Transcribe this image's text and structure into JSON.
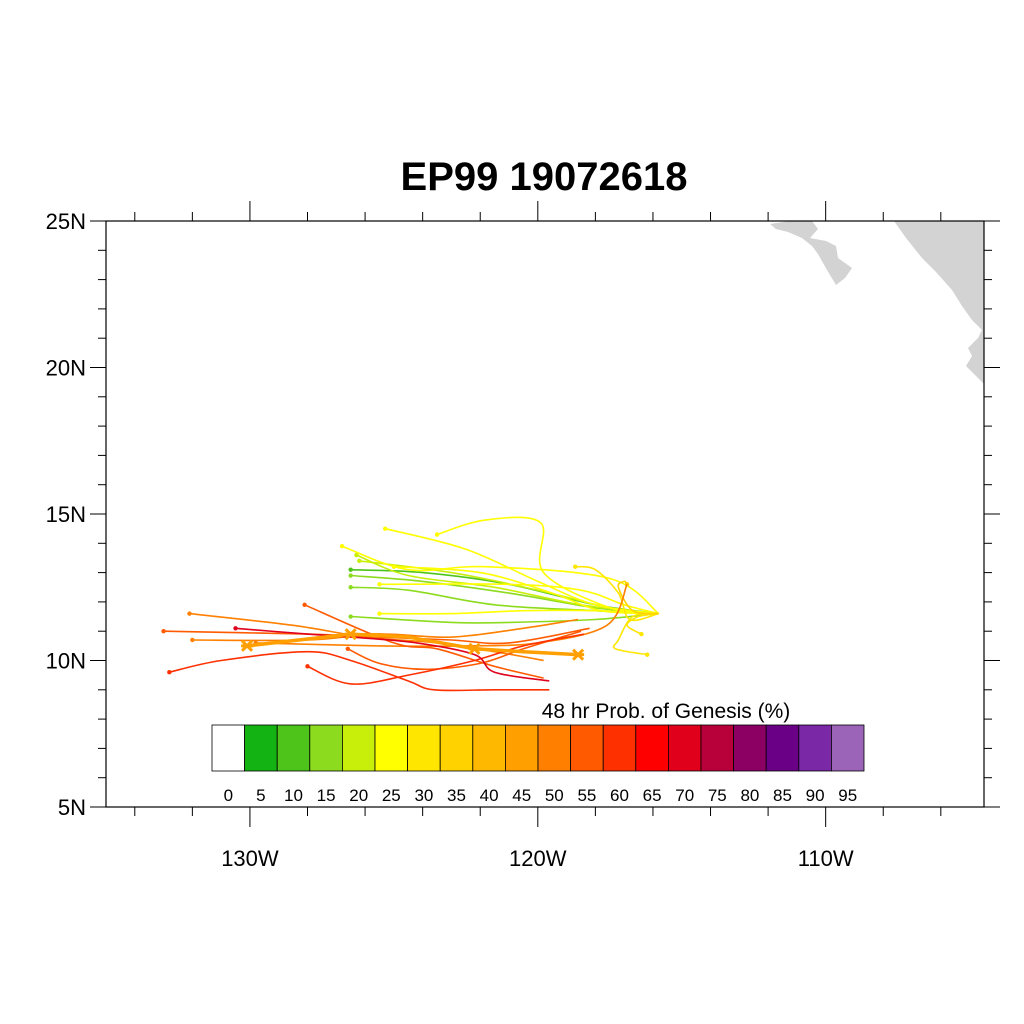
{
  "title": "EP99 19072618",
  "map": {
    "lon_range": [
      -135,
      -104.5
    ],
    "lat_range": [
      5,
      25
    ],
    "lat_ticks": [
      {
        "value": 5,
        "label": "5N"
      },
      {
        "value": 10,
        "label": "10N"
      },
      {
        "value": 15,
        "label": "15N"
      },
      {
        "value": 20,
        "label": "20N"
      },
      {
        "value": 25,
        "label": "25N"
      }
    ],
    "lon_ticks": [
      {
        "value": -130,
        "label": "130W"
      },
      {
        "value": -120,
        "label": "120W"
      },
      {
        "value": -110,
        "label": "110W"
      }
    ],
    "land_color": "#d3d3d3"
  },
  "colorbar": {
    "title": "48 hr Prob. of Genesis (%)",
    "levels": [
      "0",
      "5",
      "10",
      "15",
      "20",
      "25",
      "30",
      "35",
      "40",
      "45",
      "50",
      "55",
      "60",
      "65",
      "70",
      "75",
      "80",
      "85",
      "90",
      "95"
    ],
    "colors": [
      "#ffffff",
      "#12b312",
      "#4ec41a",
      "#8cdb1e",
      "#c8ef0a",
      "#ffff00",
      "#ffe600",
      "#ffd200",
      "#ffb800",
      "#ffa000",
      "#ff8000",
      "#ff5a00",
      "#ff3000",
      "#ff0000",
      "#e0001c",
      "#b8003a",
      "#8c0064",
      "#6a0086",
      "#7a28a6",
      "#9c64b8"
    ]
  },
  "chart_data": {
    "type": "map-tracks",
    "tracks": [
      {
        "prob": 15,
        "points": [
          [
            -115.8,
            11.6
          ],
          [
            -118,
            11.4
          ],
          [
            -121,
            11.3
          ],
          [
            -123,
            11.3
          ],
          [
            -126.5,
            11.5
          ]
        ]
      },
      {
        "prob": 15,
        "points": [
          [
            -115.8,
            11.6
          ],
          [
            -118,
            11.7
          ],
          [
            -121.5,
            11.9
          ],
          [
            -124.5,
            12.4
          ],
          [
            -126.5,
            12.5
          ]
        ]
      },
      {
        "prob": 15,
        "points": [
          [
            -115.8,
            11.6
          ],
          [
            -118,
            11.8
          ],
          [
            -121,
            12.3
          ],
          [
            -124,
            12.7
          ],
          [
            -126.5,
            12.9
          ]
        ]
      },
      {
        "prob": 10,
        "points": [
          [
            -115.8,
            11.6
          ],
          [
            -118,
            11.9
          ],
          [
            -121,
            12.6
          ],
          [
            -124,
            13.0
          ],
          [
            -126.5,
            13.1
          ]
        ]
      },
      {
        "prob": 20,
        "points": [
          [
            -115.8,
            11.6
          ],
          [
            -118.5,
            11.9
          ],
          [
            -121.5,
            12.5
          ],
          [
            -124.5,
            12.9
          ],
          [
            -126.3,
            13.6
          ]
        ]
      },
      {
        "prob": 20,
        "points": [
          [
            -115.8,
            11.6
          ],
          [
            -117.5,
            11.8
          ],
          [
            -120,
            12.4
          ],
          [
            -123,
            13.0
          ],
          [
            -126.2,
            13.4
          ]
        ]
      },
      {
        "prob": 25,
        "points": [
          [
            -115.8,
            11.6
          ],
          [
            -118,
            11.9
          ],
          [
            -120,
            12.7
          ],
          [
            -122.5,
            13.8
          ],
          [
            -125.3,
            14.5
          ]
        ]
      },
      {
        "prob": 25,
        "points": [
          [
            -115.8,
            11.6
          ],
          [
            -117.8,
            11.7
          ],
          [
            -119.5,
            12.3
          ],
          [
            -122,
            13.0
          ],
          [
            -125,
            13.2
          ]
        ]
      },
      {
        "prob": 25,
        "points": [
          [
            -115.8,
            11.6
          ],
          [
            -117,
            11.9
          ],
          [
            -118.5,
            12.4
          ],
          [
            -121,
            12.6
          ],
          [
            -125.5,
            12.6
          ]
        ]
      },
      {
        "prob": 25,
        "points": [
          [
            -115.8,
            11.6
          ],
          [
            -117.5,
            12.8
          ],
          [
            -121.8,
            13.2
          ],
          [
            -124.5,
            13.1
          ],
          [
            -126.8,
            13.9
          ]
        ]
      },
      {
        "prob": 25,
        "points": [
          [
            -115.8,
            11.6
          ],
          [
            -118,
            11.7
          ],
          [
            -120.5,
            11.7
          ],
          [
            -123,
            11.6
          ],
          [
            -125.5,
            11.6
          ]
        ]
      },
      {
        "prob": 25,
        "points": [
          [
            -115.8,
            11.6
          ],
          [
            -117.5,
            11.8
          ],
          [
            -119.8,
            13.0
          ],
          [
            -119.9,
            14.7
          ],
          [
            -121.8,
            14.8
          ],
          [
            -123.5,
            14.3
          ]
        ]
      },
      {
        "prob": 30,
        "points": [
          [
            -115.8,
            11.6
          ],
          [
            -116.8,
            11.4
          ],
          [
            -117.2,
            12.3
          ],
          [
            -118,
            13.1
          ],
          [
            -118.7,
            13.2
          ]
        ]
      },
      {
        "prob": 30,
        "points": [
          [
            -115.8,
            11.6
          ],
          [
            -116.7,
            11.5
          ],
          [
            -117.2,
            10.7
          ],
          [
            -117.3,
            10.4
          ],
          [
            -116.2,
            10.2
          ]
        ]
      },
      {
        "prob": 30,
        "points": [
          [
            -115.8,
            11.6
          ],
          [
            -116.5,
            11.5
          ],
          [
            -116.9,
            11.2
          ],
          [
            -116.4,
            10.9
          ]
        ]
      },
      {
        "prob": 35,
        "points": [
          [
            -115.8,
            11.6
          ],
          [
            -116.7,
            11.7
          ],
          [
            -117.2,
            12.5
          ],
          [
            -117.0,
            12.7
          ],
          [
            -116.9,
            12.6
          ]
        ]
      },
      {
        "prob": 45,
        "points": [
          [
            -118.6,
            10.2
          ],
          [
            -120.5,
            10.3
          ],
          [
            -122.2,
            10.4
          ],
          [
            -124.5,
            10.8
          ],
          [
            -126.5,
            10.9
          ],
          [
            -130.1,
            10.5
          ]
        ]
      },
      {
        "prob": 50,
        "points": [
          [
            -116.9,
            12.6
          ],
          [
            -117.6,
            11.2
          ],
          [
            -120,
            10.6
          ],
          [
            -122.5,
            10.5
          ],
          [
            -125.5,
            10.5
          ],
          [
            -129.8,
            10.6
          ]
        ]
      },
      {
        "prob": 50,
        "points": [
          [
            -118.6,
            11.4
          ],
          [
            -120.5,
            11.1
          ],
          [
            -123,
            10.8
          ],
          [
            -125.5,
            10.9
          ],
          [
            -128,
            10.7
          ],
          [
            -132,
            10.7
          ]
        ]
      },
      {
        "prob": 50,
        "points": [
          [
            -119.8,
            10.0
          ],
          [
            -121.5,
            10.3
          ],
          [
            -123.5,
            10.6
          ],
          [
            -126,
            10.8
          ],
          [
            -128.5,
            11.2
          ],
          [
            -132.1,
            11.6
          ]
        ]
      },
      {
        "prob": 55,
        "points": [
          [
            -119.8,
            9.4
          ],
          [
            -121.5,
            9.8
          ],
          [
            -123.5,
            10.4
          ],
          [
            -125,
            10.6
          ],
          [
            -128.1,
            11.9
          ]
        ]
      },
      {
        "prob": 55,
        "points": [
          [
            -118.2,
            11.1
          ],
          [
            -121,
            10.6
          ],
          [
            -123,
            10.7
          ],
          [
            -125.5,
            10.8
          ],
          [
            -128,
            10.9
          ],
          [
            -133,
            11.0
          ]
        ]
      },
      {
        "prob": 55,
        "points": [
          [
            -118.5,
            11.0
          ],
          [
            -120.5,
            10.4
          ],
          [
            -122,
            9.9
          ],
          [
            -123.9,
            9.7
          ],
          [
            -125.5,
            9.9
          ],
          [
            -126.6,
            10.4
          ]
        ]
      },
      {
        "prob": 60,
        "points": [
          [
            -118.4,
            10.9
          ],
          [
            -120.5,
            10.5
          ],
          [
            -122.2,
            10.0
          ],
          [
            -124.5,
            9.5
          ],
          [
            -126.5,
            9.2
          ],
          [
            -128,
            9.8
          ]
        ]
      },
      {
        "prob": 60,
        "points": [
          [
            -119.6,
            9.0
          ],
          [
            -121.5,
            9.0
          ],
          [
            -123.6,
            9.0
          ],
          [
            -124.5,
            9.3
          ],
          [
            -126.5,
            10.0
          ],
          [
            -128,
            10.3
          ],
          [
            -131,
            10.0
          ],
          [
            -132.8,
            9.6
          ]
        ]
      },
      {
        "prob": 70,
        "points": [
          [
            -119.6,
            9.3
          ],
          [
            -121.5,
            9.6
          ],
          [
            -122.2,
            10.2
          ],
          [
            -124.2,
            10.6
          ],
          [
            -126.5,
            10.8
          ],
          [
            -128,
            10.9
          ],
          [
            -130.5,
            11.1
          ]
        ]
      }
    ]
  }
}
